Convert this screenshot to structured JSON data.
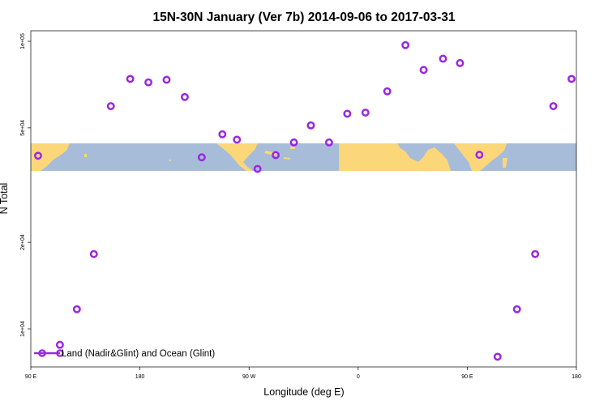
{
  "chart_data": {
    "type": "scatter",
    "title": "15N-30N January (Ver 7b)   2014-09-06 to 2017-03-31",
    "xlabel": "Longitude (deg E)",
    "ylabel": "N Total",
    "x_axis": {
      "range_deg_east": [
        90,
        450
      ],
      "ticks": [
        {
          "value": 90,
          "label": "90 E"
        },
        {
          "value": 180,
          "label": "180"
        },
        {
          "value": 270,
          "label": "90 W"
        },
        {
          "value": 360,
          "label": "0"
        },
        {
          "value": 450,
          "label": "90 E"
        },
        {
          "value": 540,
          "label": "180"
        }
      ]
    },
    "y_axis": {
      "scale": "log",
      "ticks": [
        {
          "value": 10000,
          "label": "1e+04"
        },
        {
          "value": 20000,
          "label": "2e+04"
        },
        {
          "value": 50000,
          "label": "5e+04"
        },
        {
          "value": 100000,
          "label": "1e+05"
        }
      ]
    },
    "map_band": {
      "lat_range": "15N-30N",
      "ocean_color": "#a7bcd9",
      "land_color": "#fcd77a"
    },
    "series": [
      {
        "name": "Land (Nadir&Glint) and Ocean (Glint)",
        "color": "#9b27e0",
        "marker": "open-circle",
        "x": [
          96,
          114,
          128,
          142,
          156,
          172,
          187,
          202,
          217,
          231,
          248,
          260,
          277,
          292,
          307,
          321,
          336,
          351,
          366,
          384,
          399,
          414,
          430,
          444,
          460,
          475,
          491,
          506,
          521,
          536
        ],
        "y": [
          40000,
          8800,
          11700,
          18200,
          59500,
          74000,
          72000,
          73500,
          64000,
          39500,
          47500,
          45500,
          36000,
          40200,
          44500,
          51000,
          44500,
          56000,
          56500,
          67000,
          97000,
          79500,
          87000,
          84000,
          40300,
          8000,
          11700,
          18200,
          59500,
          74000
        ]
      }
    ],
    "legend": {
      "position": "bottom-left"
    }
  }
}
